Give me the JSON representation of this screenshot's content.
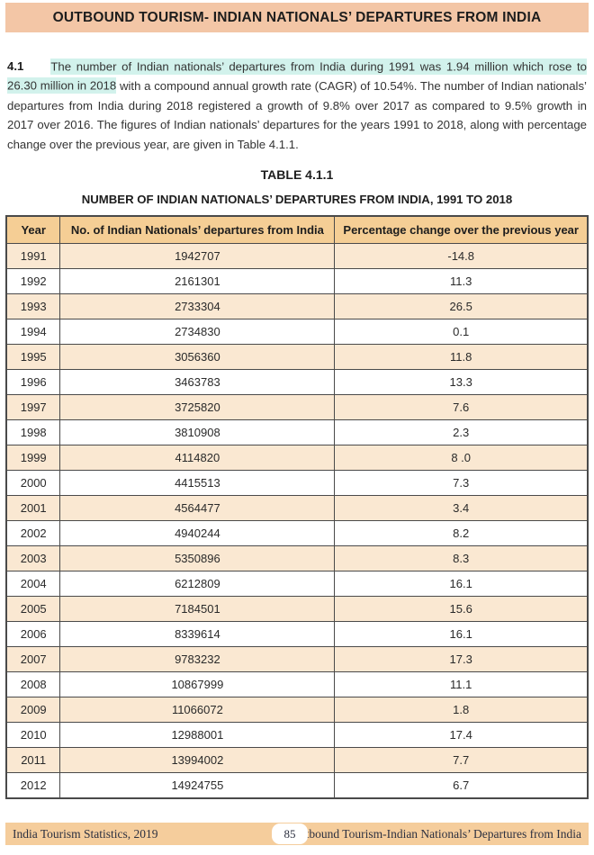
{
  "header": {
    "title": "OUTBOUND TOURISM- INDIAN NATIONALS’ DEPARTURES FROM INDIA"
  },
  "paragraph": {
    "number": "4.1",
    "highlighted": "The number of Indian nationals’ departures from India during 1991 was 1.94 million which rose to 26.30 million in 2018",
    "rest": " with a compound annual growth rate (CAGR) of 10.54%. The number of Indian nationals’ departures from India during 2018 registered a growth of 9.8% over 2017 as compared to 9.5% growth in 2017 over 2016. The figures of Indian nationals’ departures for the years 1991 to 2018, along with percentage change over the previous year, are given in Table 4.1.1."
  },
  "table": {
    "title": "TABLE 4.1.1",
    "subtitle": "NUMBER OF INDIAN NATIONALS’ DEPARTURES FROM INDIA, 1991 TO 2018",
    "columns": [
      "Year",
      "No. of Indian Nationals’ departures from India",
      "Percentage change over the previous year"
    ],
    "rows": [
      [
        "1991",
        "1942707",
        "-14.8"
      ],
      [
        "1992",
        "2161301",
        "11.3"
      ],
      [
        "1993",
        "2733304",
        "26.5"
      ],
      [
        "1994",
        "2734830",
        "0.1"
      ],
      [
        "1995",
        "3056360",
        "11.8"
      ],
      [
        "1996",
        "3463783",
        "13.3"
      ],
      [
        "1997",
        "3725820",
        "7.6"
      ],
      [
        "1998",
        "3810908",
        "2.3"
      ],
      [
        "1999",
        "4114820",
        "8 .0"
      ],
      [
        "2000",
        "4415513",
        "7.3"
      ],
      [
        "2001",
        "4564477",
        "3.4"
      ],
      [
        "2002",
        "4940244",
        "8.2"
      ],
      [
        "2003",
        "5350896",
        "8.3"
      ],
      [
        "2004",
        "6212809",
        "16.1"
      ],
      [
        "2005",
        "7184501",
        "15.6"
      ],
      [
        "2006",
        "8339614",
        "16.1"
      ],
      [
        "2007",
        "9783232",
        "17.3"
      ],
      [
        "2008",
        "10867999",
        "11.1"
      ],
      [
        "2009",
        "11066072",
        "1.8"
      ],
      [
        "2010",
        "12988001",
        "17.4"
      ],
      [
        "2011",
        "13994002",
        "7.7"
      ],
      [
        "2012",
        "14924755",
        "6.7"
      ]
    ]
  },
  "footer": {
    "left": "India Tourism Statistics, 2019",
    "page": "85",
    "right": "Outbound Tourism-Indian Nationals’ Departures from India"
  },
  "colors": {
    "banner_bg": "#f3c6a6",
    "highlight": "#d2f2ec",
    "table_header_bg": "#f5ce95",
    "row_shade_bg": "#fae8d2",
    "footer_bg": "#f5cd9c",
    "border": "#4a4a4a",
    "text": "#2b2b2b"
  }
}
